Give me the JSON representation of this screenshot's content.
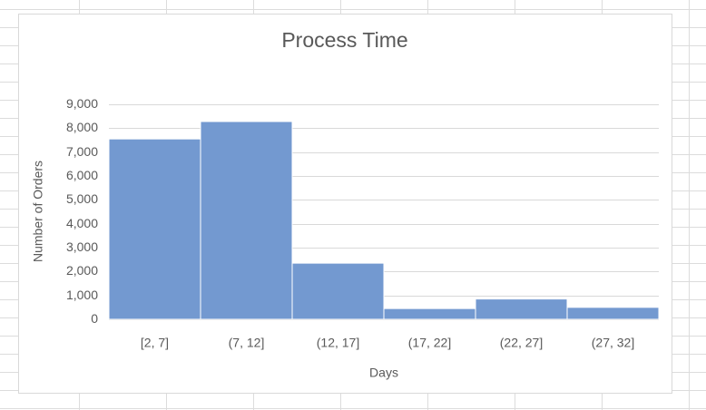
{
  "chart_data": {
    "type": "bar",
    "title": "Process Time",
    "x_label": "Days",
    "y_label": "Number of Orders",
    "categories": [
      "[2, 7]",
      "(7, 12]",
      "(12, 17]",
      "(17, 22]",
      "(22, 27]",
      "(27, 32]"
    ],
    "values": [
      7550,
      8280,
      2350,
      450,
      850,
      500
    ],
    "color": "#7399d0",
    "ylim": [
      0,
      9000
    ],
    "yticks": [
      0,
      {
        "value": 1000,
        "label": "1,000"
      },
      {
        "value": 2000,
        "label": "2,000"
      },
      {
        "value": 3000,
        "label": "3,000"
      },
      {
        "value": 4000,
        "label": "4,000"
      },
      {
        "value": 5000,
        "label": "5,000"
      },
      {
        "value": 6000,
        "label": "6,000"
      },
      {
        "value": 7000,
        "label": "7,000"
      },
      {
        "value": 8000,
        "label": "8,000"
      },
      {
        "value": 9000,
        "label": "9,000"
      }
    ],
    "grid": true
  }
}
